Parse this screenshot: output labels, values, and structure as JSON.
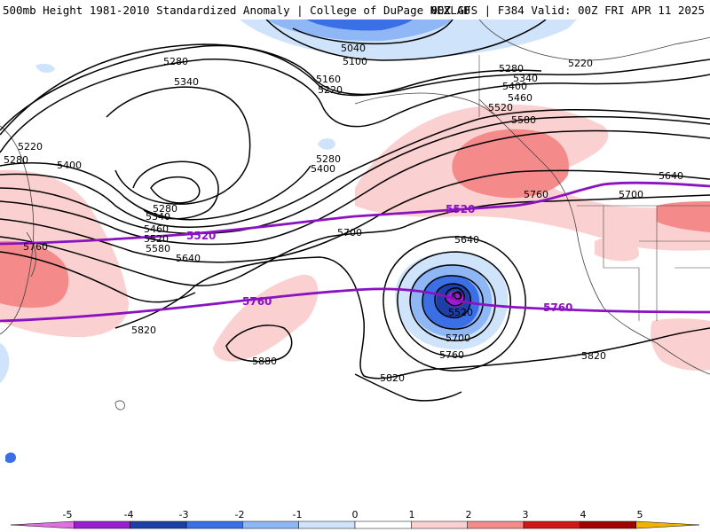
{
  "header": {
    "title_left": "500mb Height 1981-2010 Standardized Anomaly | College of DuPage NEXLAB",
    "title_right": "00Z GFS | F384 Valid: 00Z FRI APR 11 2025"
  },
  "map": {
    "contour_labels": [
      "5040",
      "5100",
      "5160",
      "5220",
      "5280",
      "5340",
      "5400",
      "5460",
      "5520",
      "5580",
      "5640",
      "5700",
      "5760",
      "5820",
      "5880"
    ],
    "highlight_labels": [
      "5520",
      "5760"
    ],
    "highlight_color": "#8a12c0"
  },
  "legend": {
    "ticks": [
      "-5",
      "-4",
      "-3",
      "-2",
      "-1",
      "0",
      "1",
      "2",
      "3",
      "4",
      "5"
    ],
    "colors": [
      "#e070e0",
      "#9b1fd0",
      "#1d3fa8",
      "#3b6fe6",
      "#8fb6f5",
      "#cfe3fb",
      "#ffffff",
      "#fbd0d0",
      "#f58a8a",
      "#d01818",
      "#a00000",
      "#f0b400"
    ]
  }
}
